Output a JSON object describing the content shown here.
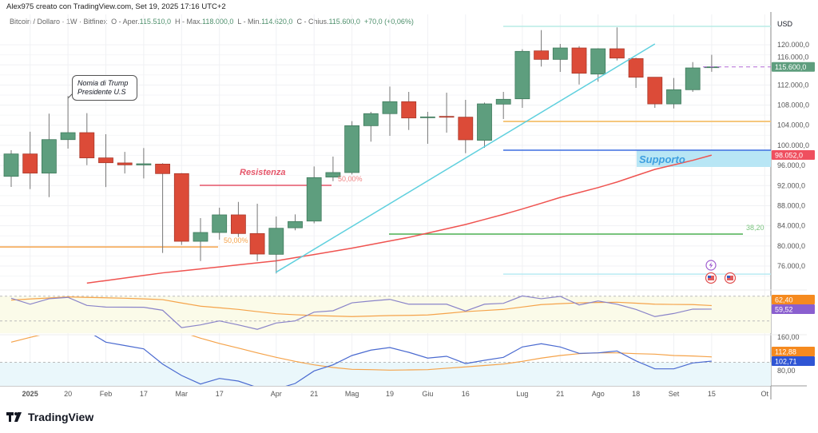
{
  "header": {
    "caption": "Alex975 creato con TradingView.com, Set 19, 2025 17:16 UTC+2",
    "symbol": "Bitcoin / Dollaro · 1W · Bitfinex",
    "open_label": "O - Aper.",
    "open": "115.510,0",
    "high_label": "H - Max.",
    "high": "118.000,0",
    "low_label": "L - Min.",
    "low": "114.620,0",
    "close_label": "C - Chius.",
    "close": "115.600,0",
    "change": "+70,0 (+0,06%)"
  },
  "colors": {
    "up": "#5e9e7e",
    "down": "#dc4b38",
    "ma": "#ef5350",
    "trendline": "#5fd0de",
    "support": "#3d6fe0",
    "support_zone": "#b8e6f5",
    "fib_green": "#4caf50",
    "orange": "#f5a34a",
    "rsi": "#8a84c9",
    "osc": "#4a6ad0"
  },
  "price_axis": {
    "currency": "USD",
    "ticks": [
      "120.000,0",
      "116.000,0",
      "112.000,0",
      "108.000,0",
      "104.000,0",
      "100.000,0",
      "96.000,0",
      "92.000,0",
      "88.000,0",
      "84.000,0",
      "80.000,0",
      "76.000,0"
    ],
    "tick_values": [
      120000,
      116000,
      112000,
      108000,
      104000,
      100000,
      96000,
      92000,
      88000,
      84000,
      80000,
      76000
    ],
    "last_price_label": "115.600,0",
    "ma_label": "98.052,0"
  },
  "time_axis": [
    {
      "label": "2025",
      "week": 1,
      "bold": true
    },
    {
      "label": "20",
      "week": 3
    },
    {
      "label": "Feb",
      "week": 5
    },
    {
      "label": "17",
      "week": 7
    },
    {
      "label": "Mar",
      "week": 9
    },
    {
      "label": "17",
      "week": 11
    },
    {
      "label": "Apr",
      "week": 14
    },
    {
      "label": "21",
      "week": 16
    },
    {
      "label": "Mag",
      "week": 18
    },
    {
      "label": "19",
      "week": 20
    },
    {
      "label": "Giu",
      "week": 22
    },
    {
      "label": "16",
      "week": 24
    },
    {
      "label": "Lug",
      "week": 27
    },
    {
      "label": "21",
      "week": 29
    },
    {
      "label": "Ago",
      "week": 31
    },
    {
      "label": "18",
      "week": 33
    },
    {
      "label": "Set",
      "week": 35
    },
    {
      "label": "15",
      "week": 37
    },
    {
      "label": "Ot",
      "week": 39.8
    }
  ],
  "chart_data": {
    "type": "candlestick",
    "interval": "1W",
    "ohlc": [
      [
        93835,
        99030,
        91722,
        98284
      ],
      [
        98284,
        102700,
        91300,
        94470
      ],
      [
        94470,
        106300,
        89700,
        101140
      ],
      [
        101140,
        109800,
        99350,
        102520
      ],
      [
        102520,
        106400,
        96060,
        97500
      ],
      [
        97500,
        102200,
        91700,
        96540
      ],
      [
        96500,
        98700,
        94400,
        96120
      ],
      [
        96100,
        99460,
        93420,
        96330
      ],
      [
        96270,
        96440,
        78600,
        94380
      ],
      [
        94380,
        94470,
        80200,
        80920
      ],
      [
        80920,
        85530,
        77000,
        82670
      ],
      [
        82670,
        87600,
        81240,
        86170
      ],
      [
        86170,
        88750,
        81760,
        82460
      ],
      [
        82460,
        88390,
        77000,
        78380
      ],
      [
        78330,
        85850,
        74520,
        83510
      ],
      [
        83600,
        86270,
        83100,
        84850
      ],
      [
        84940,
        95800,
        84500,
        93580
      ],
      [
        93680,
        97760,
        92880,
        94590
      ],
      [
        94590,
        104800,
        94200,
        103900
      ],
      [
        103900,
        106660,
        100730,
        106300
      ],
      [
        106300,
        111690,
        101890,
        108680
      ],
      [
        108680,
        110630,
        103050,
        105440
      ],
      [
        105500,
        106660,
        100300,
        105650
      ],
      [
        105750,
        110470,
        102520,
        105650
      ],
      [
        105600,
        109040,
        98440,
        101100
      ],
      [
        101000,
        108500,
        99500,
        108240
      ],
      [
        108200,
        110630,
        105230,
        109150
      ],
      [
        109250,
        119100,
        107450,
        118680
      ],
      [
        118780,
        122910,
        115660,
        117090
      ],
      [
        117090,
        120160,
        114600,
        119360
      ],
      [
        119360,
        119730,
        112100,
        114330
      ],
      [
        114170,
        119300,
        112650,
        119200
      ],
      [
        119200,
        123450,
        116870,
        117350
      ],
      [
        117250,
        117400,
        111420,
        113540
      ],
      [
        113540,
        113540,
        107450,
        108240
      ],
      [
        108240,
        113380,
        107340,
        111060
      ],
      [
        111060,
        116550,
        110630,
        115390
      ],
      [
        115510,
        118000,
        114620,
        115600
      ]
    ],
    "moving_average": [
      null,
      null,
      null,
      null,
      72600,
      73110,
      73620,
      74130,
      74640,
      75020,
      75430,
      75830,
      76240,
      76640,
      77040,
      77670,
      78290,
      78920,
      79560,
      80270,
      80980,
      81690,
      82550,
      83400,
      84260,
      85260,
      86270,
      87350,
      88480,
      89640,
      90610,
      91600,
      92700,
      93970,
      95220,
      96120,
      97020,
      98052
    ],
    "rsi": {
      "levels": [
        70,
        50
      ],
      "value_label": "59,52",
      "ma_label": "62,40",
      "values": [
        68.3,
        63.5,
        67.9,
        69,
        62.5,
        61.2,
        61.1,
        61,
        58.6,
        44.6,
        46.8,
        50,
        46.8,
        43.2,
        48.3,
        50,
        57.1,
        58.2,
        64.6,
        66.1,
        67.4,
        63.5,
        63.5,
        63.5,
        58,
        63.5,
        64.2,
        70.2,
        67.9,
        69.8,
        62.9,
        66.1,
        63.5,
        59.3,
        53.5,
        56,
        59.5,
        59.52
      ],
      "ma": [
        66.8,
        67.7,
        68.5,
        69.4,
        69,
        68.7,
        68.3,
        67.8,
        67.2,
        64.5,
        61.9,
        60.6,
        59.3,
        57.5,
        55.8,
        55,
        54.3,
        53.9,
        53.5,
        53.9,
        54.3,
        54.5,
        54.8,
        56.1,
        57.5,
        58.4,
        59.3,
        61.2,
        63.2,
        63.9,
        64.6,
        64.9,
        65.1,
        64.3,
        63.5,
        63.3,
        63.2,
        62.4
      ]
    },
    "oscillator": {
      "ticks": [
        "160,00",
        "80,00"
      ],
      "tick_values": [
        160,
        80
      ],
      "level": 100,
      "value_label": "102,71",
      "ma_label": "112,88",
      "values": [
        null,
        null,
        null,
        null,
        175,
        148,
        140,
        132,
        95.8,
        68.6,
        48.2,
        61.5,
        55.2,
        40,
        36,
        49.5,
        79.4,
        93.9,
        116.2,
        129,
        135.2,
        123.8,
        110,
        114.3,
        97,
        104.8,
        111.8,
        136.6,
        144.2,
        136.6,
        121.3,
        122.5,
        127,
        103.4,
        84.4,
        84.4,
        98.5,
        102.71
      ],
      "ma": [
        148,
        159.4,
        170,
        null,
        null,
        null,
        null,
        null,
        175,
        172,
        157.5,
        144.8,
        134,
        122.5,
        111.8,
        102.3,
        93.9,
        87.6,
        83.2,
        82.5,
        81.3,
        81.9,
        82.5,
        85.8,
        89,
        92.4,
        95.8,
        102.3,
        110,
        116.2,
        120.6,
        122.5,
        122.5,
        120.6,
        119.4,
        116.2,
        115,
        112.88
      ]
    }
  },
  "drawings": {
    "callout": [
      "Nomia di Trump",
      "Presidente U.S"
    ],
    "resistance_label": "Resistenza",
    "resistance_level": 92040,
    "support_label": "Supporto",
    "support_level": 99030,
    "support_zone": [
      95700,
      99030
    ],
    "fib_50_left": {
      "label": "50,00%",
      "level": 79800
    },
    "fib_50_mid": {
      "label": "50,00%"
    },
    "fib_382": {
      "label": "38,20",
      "level": 82350
    },
    "orange_level": 104750,
    "cyan_top": 123650,
    "cyan_bottom": 74400,
    "trendline": {
      "from": [
        13.97,
        74720
      ],
      "to": [
        34.0,
        120160
      ]
    }
  },
  "events": [
    "lightning-icon",
    "us-flag-icon",
    "us-flag-icon"
  ],
  "brand": "TradingView"
}
